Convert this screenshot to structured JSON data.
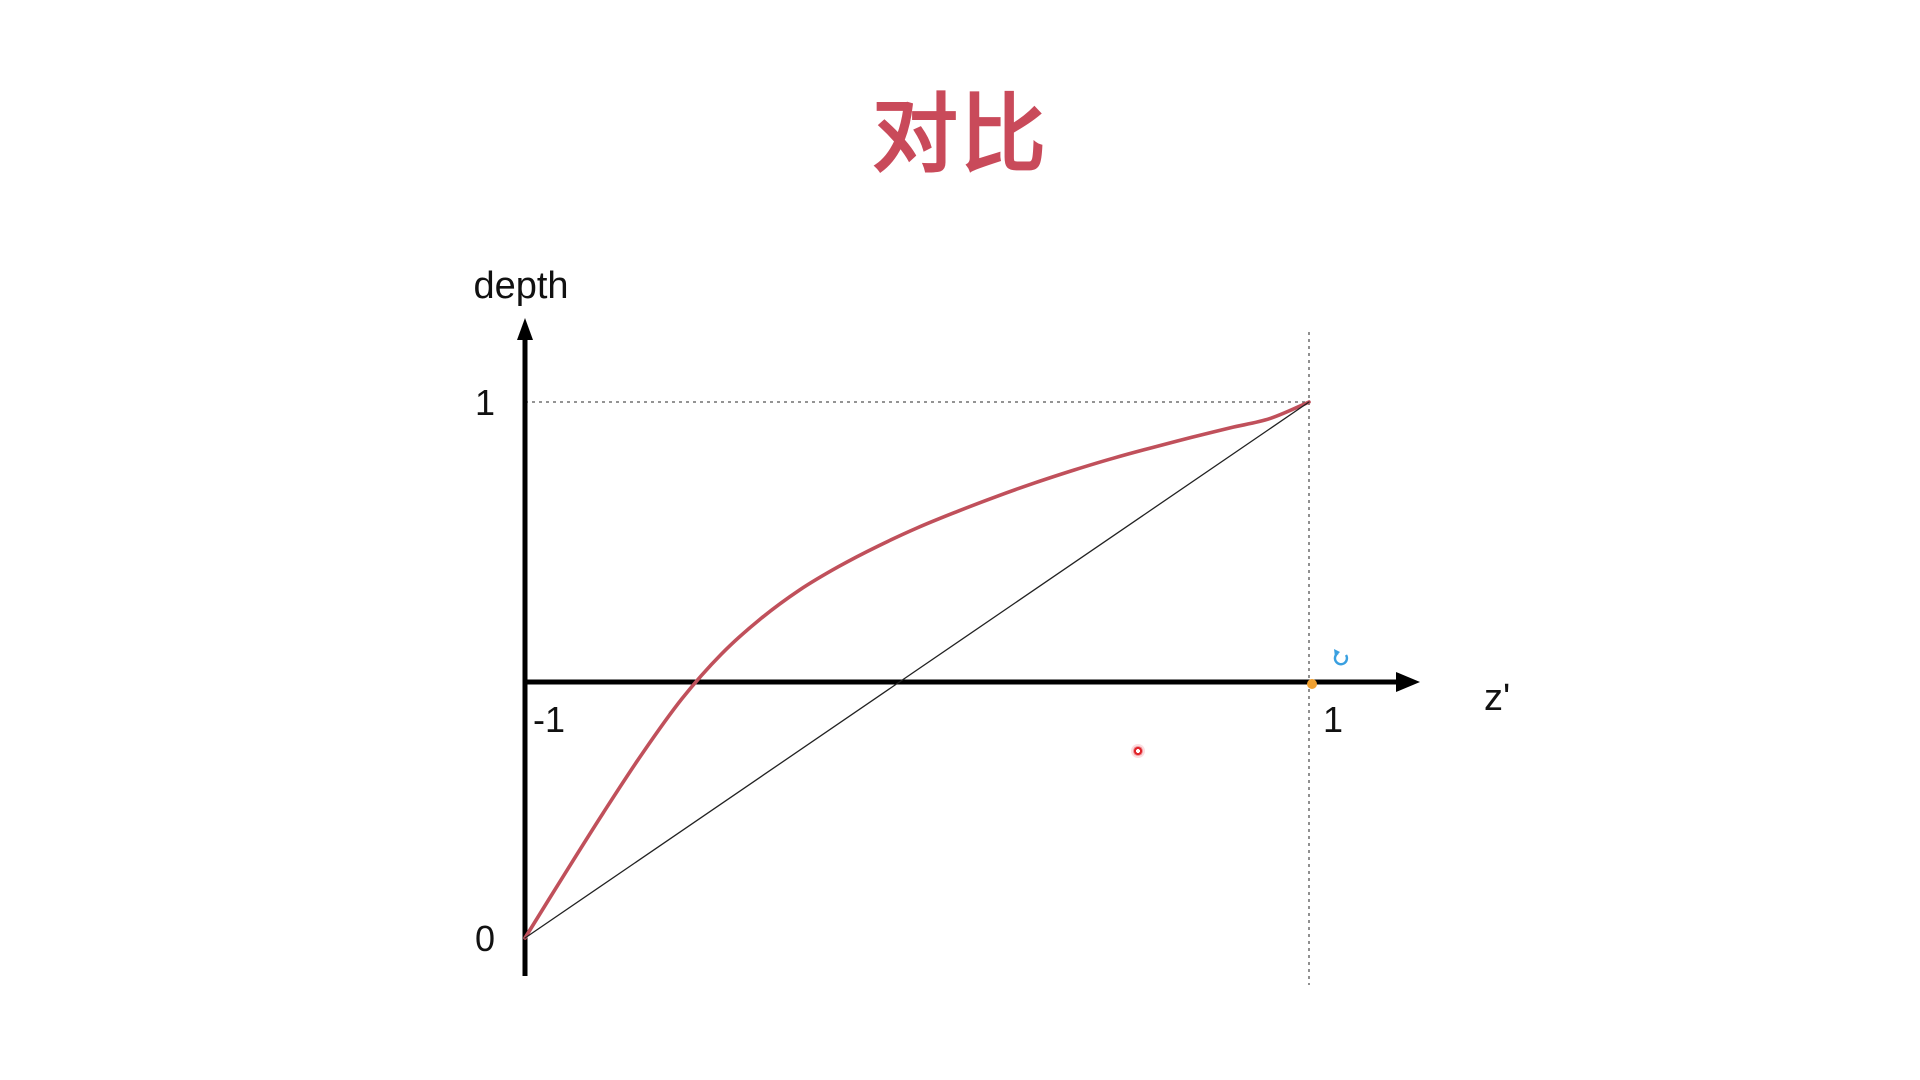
{
  "slide": {
    "title": "对比",
    "title_color": "#c94a5a"
  },
  "chart_data": {
    "type": "line",
    "title": "",
    "xlabel": "z'",
    "ylabel": "depth",
    "xlim": [
      -1,
      1
    ],
    "ylim": [
      0,
      1
    ],
    "x_ticks": [
      {
        "value": -1,
        "label": "-1"
      },
      {
        "value": 1,
        "label": "1"
      }
    ],
    "y_ticks": [
      {
        "value": 0,
        "label": "0"
      },
      {
        "value": 1,
        "label": "1"
      }
    ],
    "grid": false,
    "legend": "none",
    "series": [
      {
        "color": "#c0505b",
        "x": [
          -1,
          -0.9,
          -0.8,
          -0.7,
          -0.6,
          -0.5,
          -0.4,
          -0.3,
          -0.2,
          -0.1,
          0,
          0.1,
          0.2,
          0.3,
          0.4,
          0.5,
          0.6,
          0.7,
          0.8,
          0.9,
          1
        ],
        "y": [
          0,
          0.118,
          0.234,
          0.345,
          0.446,
          0.529,
          0.595,
          0.649,
          0.693,
          0.731,
          0.765,
          0.795,
          0.823,
          0.849,
          0.873,
          0.895,
          0.915,
          0.934,
          0.952,
          0.969,
          1
        ]
      },
      {
        "color": "#222222",
        "x": [
          -1,
          1
        ],
        "y": [
          0,
          1
        ]
      }
    ],
    "reference_lines": [
      {
        "axis": "y",
        "value": 1,
        "style": "dotted"
      },
      {
        "axis": "x",
        "value": 1,
        "style": "dotted"
      }
    ]
  }
}
